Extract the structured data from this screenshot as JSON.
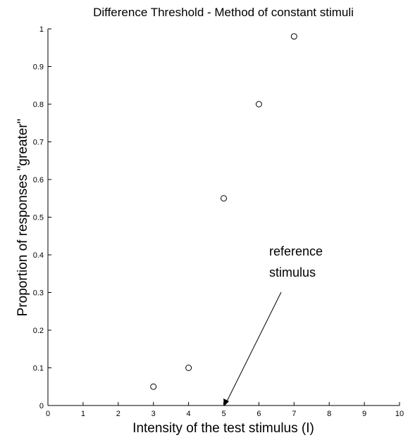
{
  "chart_data": {
    "type": "scatter",
    "title": "Difference Threshold - Method of constant stimuli",
    "xlabel": "Intensity of the test stimulus (I)",
    "ylabel": "Proportion of responses \"greater\"",
    "xlim": [
      0,
      10
    ],
    "ylim": [
      0,
      1
    ],
    "xticks": [
      "0",
      "1",
      "2",
      "3",
      "4",
      "5",
      "6",
      "7",
      "8",
      "9",
      "10"
    ],
    "yticks": [
      "0",
      "0.1",
      "0.2",
      "0.3",
      "0.4",
      "0.5",
      "0.6",
      "0.7",
      "0.8",
      "0.9",
      "1"
    ],
    "grid": false,
    "legend": "none",
    "marker": "open-circle",
    "series": [
      {
        "x": [
          3,
          4,
          5,
          6,
          7
        ],
        "y": [
          0.05,
          0.1,
          0.55,
          0.8,
          0.98
        ]
      }
    ],
    "annotations": [
      {
        "text_lines": [
          "reference",
          "stimulus"
        ],
        "points_to": {
          "x": 5,
          "y": 0
        }
      }
    ]
  }
}
